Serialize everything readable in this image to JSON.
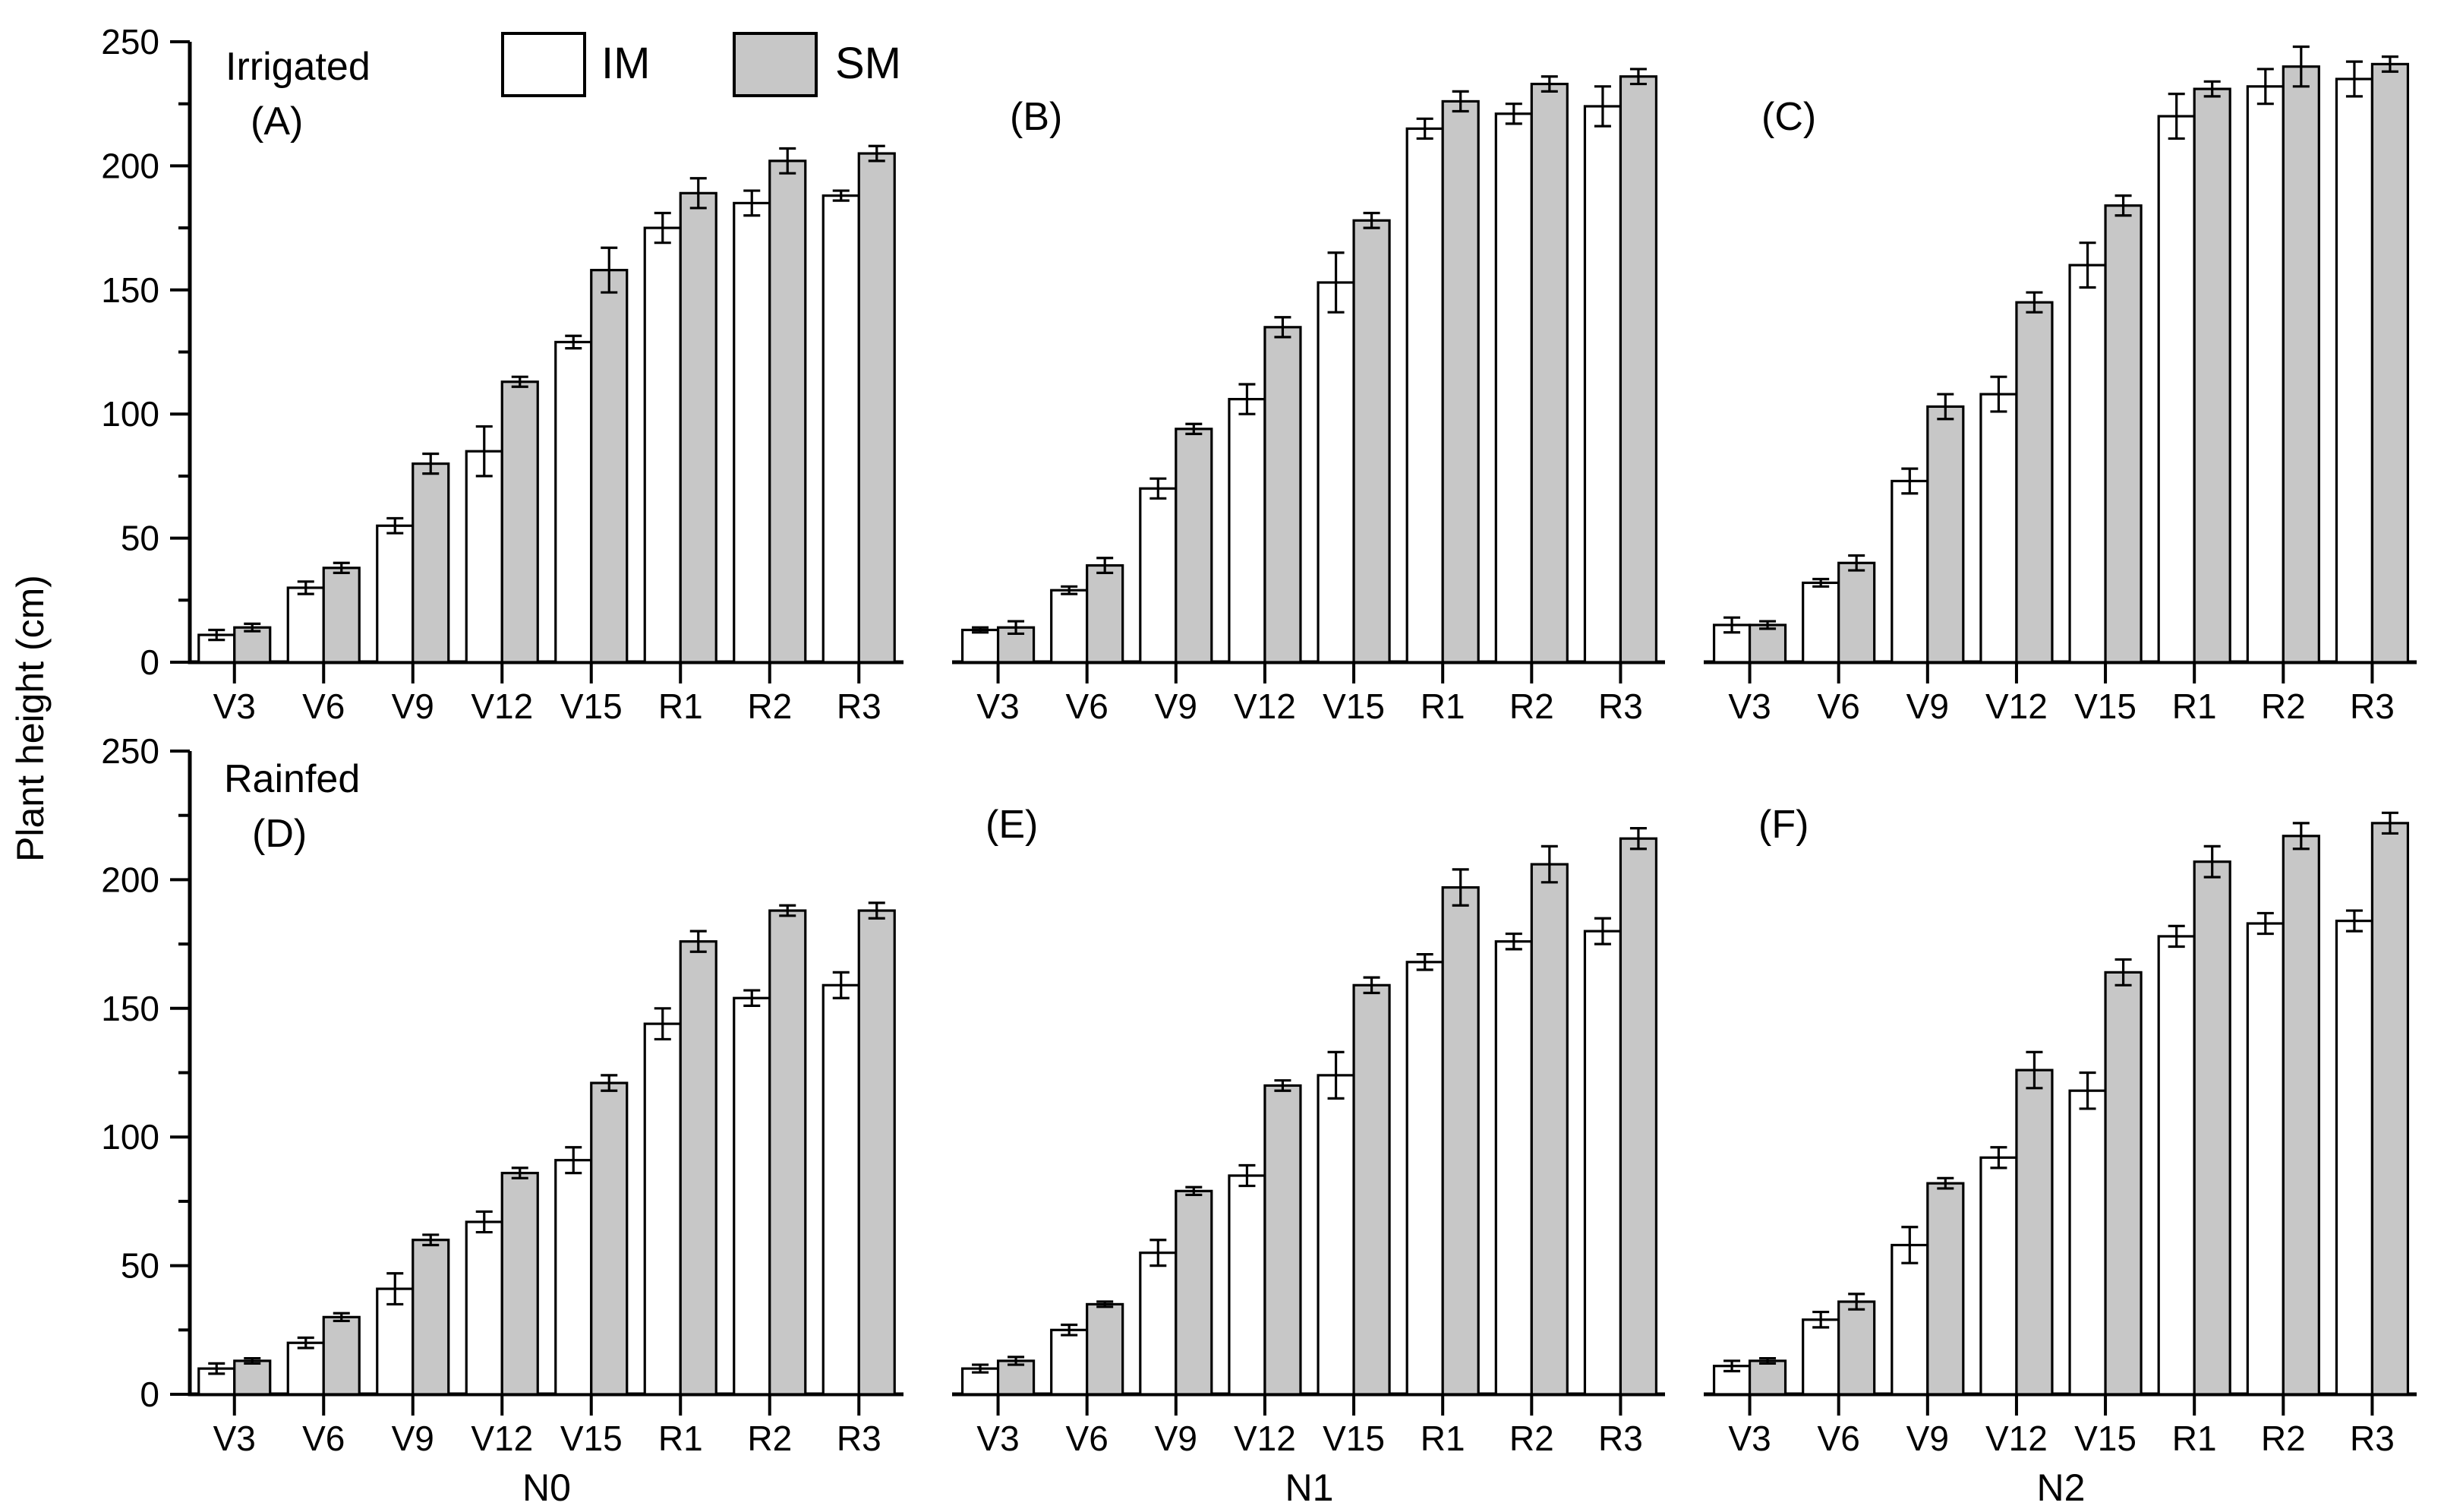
{
  "figure": {
    "y_axis_title": "Plant height (cm)",
    "background": "#ffffff",
    "axis_color": "#000000"
  },
  "legend": {
    "position": "top-left-panel-A",
    "items": [
      {
        "label": "IM",
        "fill": "#ffffff"
      },
      {
        "label": "SM",
        "fill": "#c7c7c7"
      }
    ]
  },
  "chart_data": [
    {
      "type": "bar",
      "panel_label": "(A)",
      "condition_label": "Irrigated",
      "row": "top",
      "col": 0,
      "y_tick_labels_visible": true,
      "ylim": [
        0,
        250
      ],
      "yticks": [
        0,
        50,
        100,
        150,
        200,
        250
      ],
      "categories": [
        "V3",
        "V6",
        "V9",
        "V12",
        "V15",
        "R1",
        "R2",
        "R3"
      ],
      "series": [
        {
          "name": "IM",
          "fill": "#ffffff",
          "values": [
            11,
            30,
            55,
            85,
            129,
            175,
            185,
            188
          ],
          "errors": [
            2,
            2.5,
            3,
            10,
            2.5,
            6,
            5,
            2
          ]
        },
        {
          "name": "SM",
          "fill": "#c7c7c7",
          "values": [
            14,
            38,
            80,
            113,
            158,
            189,
            202,
            205
          ],
          "errors": [
            1.5,
            2,
            4,
            2,
            9,
            6,
            5,
            3
          ]
        }
      ]
    },
    {
      "type": "bar",
      "panel_label": "(B)",
      "row": "top",
      "col": 1,
      "y_tick_labels_visible": false,
      "ylim": [
        0,
        250
      ],
      "yticks": [
        0,
        50,
        100,
        150,
        200,
        250
      ],
      "categories": [
        "V3",
        "V6",
        "V9",
        "V12",
        "V15",
        "R1",
        "R2",
        "R3"
      ],
      "series": [
        {
          "name": "IM",
          "fill": "#ffffff",
          "values": [
            13,
            29,
            70,
            106,
            153,
            215,
            221,
            224
          ],
          "errors": [
            1,
            1.5,
            4,
            6,
            12,
            4,
            4,
            8
          ]
        },
        {
          "name": "SM",
          "fill": "#c7c7c7",
          "values": [
            14,
            39,
            94,
            135,
            178,
            226,
            233,
            236
          ],
          "errors": [
            2.5,
            3,
            2,
            4,
            3,
            4,
            3,
            3
          ]
        }
      ]
    },
    {
      "type": "bar",
      "panel_label": "(C)",
      "row": "top",
      "col": 2,
      "y_tick_labels_visible": false,
      "ylim": [
        0,
        250
      ],
      "yticks": [
        0,
        50,
        100,
        150,
        200,
        250
      ],
      "categories": [
        "V3",
        "V6",
        "V9",
        "V12",
        "V15",
        "R1",
        "R2",
        "R3"
      ],
      "series": [
        {
          "name": "IM",
          "fill": "#ffffff",
          "values": [
            15,
            32,
            73,
            108,
            160,
            220,
            232,
            235
          ],
          "errors": [
            3,
            1.5,
            5,
            7,
            9,
            9,
            7,
            7
          ]
        },
        {
          "name": "SM",
          "fill": "#c7c7c7",
          "values": [
            15,
            40,
            103,
            145,
            184,
            231,
            240,
            241
          ],
          "errors": [
            1.5,
            3,
            5,
            4,
            4,
            3,
            8,
            3
          ]
        }
      ]
    },
    {
      "type": "bar",
      "panel_label": "(D)",
      "condition_label": "Rainfed",
      "group_label": "N0",
      "row": "bottom",
      "col": 0,
      "y_tick_labels_visible": true,
      "ylim": [
        0,
        250
      ],
      "yticks": [
        0,
        50,
        100,
        150,
        200,
        250
      ],
      "categories": [
        "V3",
        "V6",
        "V9",
        "V12",
        "V15",
        "R1",
        "R2",
        "R3"
      ],
      "series": [
        {
          "name": "IM",
          "fill": "#ffffff",
          "values": [
            10,
            20,
            41,
            67,
            91,
            144,
            154,
            159
          ],
          "errors": [
            2,
            2,
            6,
            4,
            5,
            6,
            3,
            5
          ]
        },
        {
          "name": "SM",
          "fill": "#c7c7c7",
          "values": [
            13,
            30,
            60,
            86,
            121,
            176,
            188,
            188
          ],
          "errors": [
            1,
            1.5,
            2,
            2,
            3,
            4,
            2,
            3
          ]
        }
      ]
    },
    {
      "type": "bar",
      "panel_label": "(E)",
      "group_label": "N1",
      "row": "bottom",
      "col": 1,
      "y_tick_labels_visible": false,
      "ylim": [
        0,
        250
      ],
      "yticks": [
        0,
        50,
        100,
        150,
        200,
        250
      ],
      "categories": [
        "V3",
        "V6",
        "V9",
        "V12",
        "V15",
        "R1",
        "R2",
        "R3"
      ],
      "series": [
        {
          "name": "IM",
          "fill": "#ffffff",
          "values": [
            10,
            25,
            55,
            85,
            124,
            168,
            176,
            180
          ],
          "errors": [
            1.5,
            2,
            5,
            4,
            9,
            3,
            3,
            5
          ]
        },
        {
          "name": "SM",
          "fill": "#c7c7c7",
          "values": [
            13,
            35,
            79,
            120,
            159,
            197,
            206,
            216
          ],
          "errors": [
            1.5,
            1,
            1.5,
            2,
            3,
            7,
            7,
            4
          ]
        }
      ]
    },
    {
      "type": "bar",
      "panel_label": "(F)",
      "group_label": "N2",
      "row": "bottom",
      "col": 2,
      "y_tick_labels_visible": false,
      "ylim": [
        0,
        250
      ],
      "yticks": [
        0,
        50,
        100,
        150,
        200,
        250
      ],
      "categories": [
        "V3",
        "V6",
        "V9",
        "V12",
        "V15",
        "R1",
        "R2",
        "R3"
      ],
      "series": [
        {
          "name": "IM",
          "fill": "#ffffff",
          "values": [
            11,
            29,
            58,
            92,
            118,
            178,
            183,
            184
          ],
          "errors": [
            2,
            3,
            7,
            4,
            7,
            4,
            4,
            4
          ]
        },
        {
          "name": "SM",
          "fill": "#c7c7c7",
          "values": [
            13,
            36,
            82,
            126,
            164,
            207,
            217,
            222
          ],
          "errors": [
            1,
            3,
            2,
            7,
            5,
            6,
            5,
            4
          ]
        }
      ]
    }
  ]
}
